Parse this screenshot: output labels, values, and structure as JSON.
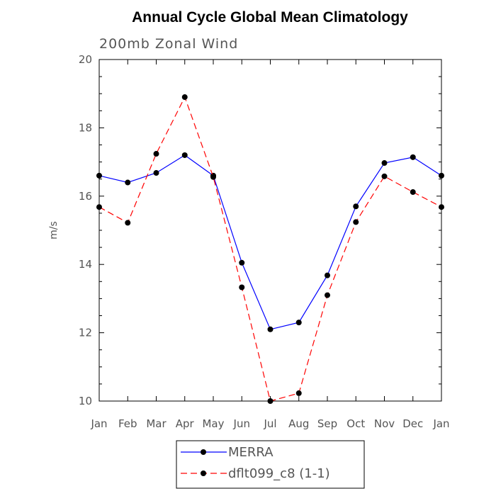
{
  "chart_data": {
    "type": "line",
    "title": "Annual Cycle Global Mean Climatology",
    "subtitle": "200mb Zonal Wind",
    "xlabel": "",
    "ylabel": "m/s",
    "categories": [
      "Jan",
      "Feb",
      "Mar",
      "Apr",
      "May",
      "Jun",
      "Jul",
      "Aug",
      "Sep",
      "Oct",
      "Nov",
      "Dec",
      "Jan"
    ],
    "ylim": [
      10,
      20
    ],
    "yticks": [
      10,
      12,
      14,
      16,
      18,
      20
    ],
    "grid": false,
    "legend_position": "bottom",
    "series": [
      {
        "name": "MERRA",
        "color": "#0000ff",
        "line_style": "solid",
        "marker": "filled-circle",
        "values": [
          16.6,
          16.4,
          16.68,
          17.2,
          16.6,
          14.05,
          12.1,
          12.3,
          13.68,
          15.7,
          16.97,
          17.14,
          16.6
        ]
      },
      {
        "name": "dflt099_c8 (1-1)",
        "color": "#ff0000",
        "line_style": "dashed",
        "marker": "filled-circle",
        "values": [
          15.68,
          15.22,
          17.24,
          18.9,
          16.56,
          13.33,
          10.0,
          10.23,
          13.1,
          15.24,
          16.58,
          16.12,
          15.68
        ]
      }
    ]
  }
}
